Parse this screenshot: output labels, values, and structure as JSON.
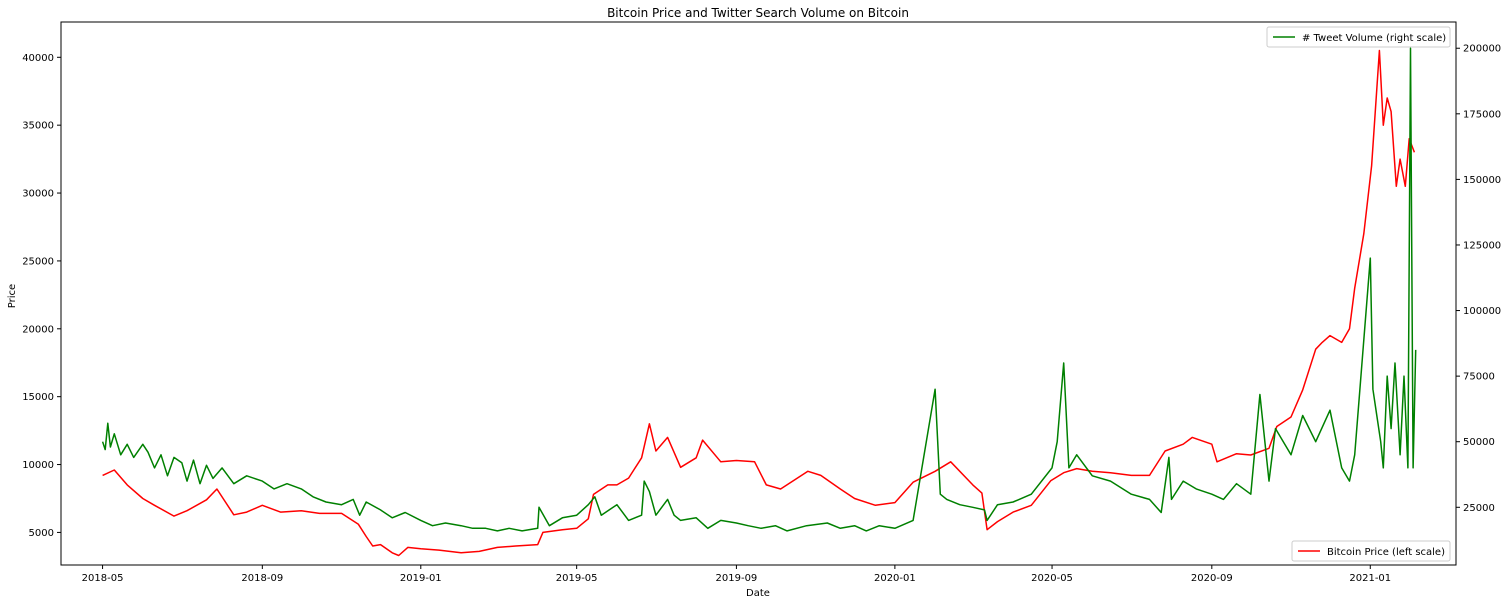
{
  "chart_data": {
    "type": "line",
    "title": "Bitcoin Price and Twitter Search Volume on Bitcoin",
    "xlabel": "Date",
    "ylabel": "Price",
    "y2label": "",
    "x_range": [
      "2018-03-30",
      "2021-03-08"
    ],
    "x_ticks": [
      "2018-05",
      "2018-09",
      "2019-01",
      "2019-05",
      "2019-09",
      "2020-01",
      "2020-05",
      "2020-09",
      "2021-01"
    ],
    "ylim": [
      2600,
      42600
    ],
    "y_ticks": [
      5000,
      10000,
      15000,
      20000,
      25000,
      30000,
      35000,
      40000
    ],
    "y2lim": [
      3000,
      210000
    ],
    "y2_ticks": [
      25000,
      50000,
      75000,
      100000,
      125000,
      150000,
      175000,
      200000
    ],
    "grid": false,
    "series": [
      {
        "name": "Bitcoin Price (left scale)",
        "axis": "left",
        "color": "#ff0000",
        "legend_position": "lower right",
        "x": [
          "2018-05-01",
          "2018-05-10",
          "2018-05-20",
          "2018-06-01",
          "2018-06-10",
          "2018-06-25",
          "2018-07-05",
          "2018-07-20",
          "2018-07-28",
          "2018-08-10",
          "2018-08-20",
          "2018-09-01",
          "2018-09-15",
          "2018-10-01",
          "2018-10-15",
          "2018-11-01",
          "2018-11-14",
          "2018-11-20",
          "2018-11-25",
          "2018-12-01",
          "2018-12-10",
          "2018-12-15",
          "2018-12-22",
          "2019-01-01",
          "2019-01-15",
          "2019-02-01",
          "2019-02-15",
          "2019-03-01",
          "2019-03-15",
          "2019-04-01",
          "2019-04-05",
          "2019-04-20",
          "2019-05-01",
          "2019-05-10",
          "2019-05-14",
          "2019-05-25",
          "2019-06-01",
          "2019-06-10",
          "2019-06-20",
          "2019-06-26",
          "2019-07-01",
          "2019-07-10",
          "2019-07-20",
          "2019-08-01",
          "2019-08-06",
          "2019-08-20",
          "2019-09-01",
          "2019-09-15",
          "2019-09-24",
          "2019-10-05",
          "2019-10-26",
          "2019-11-05",
          "2019-11-20",
          "2019-12-01",
          "2019-12-17",
          "2020-01-01",
          "2020-01-15",
          "2020-02-01",
          "2020-02-13",
          "2020-03-01",
          "2020-03-08",
          "2020-03-12",
          "2020-03-20",
          "2020-04-01",
          "2020-04-15",
          "2020-04-30",
          "2020-05-10",
          "2020-05-20",
          "2020-06-01",
          "2020-06-15",
          "2020-07-01",
          "2020-07-15",
          "2020-07-27",
          "2020-08-10",
          "2020-08-17",
          "2020-09-01",
          "2020-09-05",
          "2020-09-20",
          "2020-10-01",
          "2020-10-15",
          "2020-10-21",
          "2020-11-01",
          "2020-11-10",
          "2020-11-20",
          "2020-11-25",
          "2020-12-01",
          "2020-12-10",
          "2020-12-16",
          "2020-12-20",
          "2020-12-27",
          "2021-01-02",
          "2021-01-08",
          "2021-01-11",
          "2021-01-14",
          "2021-01-17",
          "2021-01-21",
          "2021-01-24",
          "2021-01-28",
          "2021-01-31",
          "2021-02-02",
          "2021-02-04"
        ],
        "values": [
          9200,
          9600,
          8500,
          7500,
          7000,
          6200,
          6600,
          7400,
          8200,
          6300,
          6500,
          7000,
          6500,
          6600,
          6400,
          6400,
          5600,
          4700,
          4000,
          4100,
          3500,
          3300,
          3900,
          3800,
          3700,
          3500,
          3600,
          3900,
          4000,
          4100,
          5000,
          5200,
          5300,
          6000,
          7800,
          8500,
          8500,
          9000,
          10500,
          13000,
          11000,
          12000,
          9800,
          10500,
          11800,
          10200,
          10300,
          10200,
          8500,
          8200,
          9500,
          9200,
          8200,
          7500,
          7000,
          7200,
          8700,
          9500,
          10200,
          8500,
          7900,
          5200,
          5800,
          6500,
          7000,
          8800,
          9400,
          9700,
          9500,
          9400,
          9200,
          9200,
          11000,
          11500,
          12000,
          11500,
          10200,
          10800,
          10700,
          11200,
          12800,
          13500,
          15500,
          18500,
          19000,
          19500,
          19000,
          20000,
          23000,
          27000,
          32000,
          40500,
          35000,
          37000,
          36000,
          30500,
          32500,
          30500,
          34000,
          33500,
          33000
        ]
      },
      {
        "name": "# Tweet Volume (right scale)",
        "axis": "right",
        "color": "#008000",
        "legend_position": "upper right",
        "x": [
          "2018-05-01",
          "2018-05-03",
          "2018-05-05",
          "2018-05-07",
          "2018-05-10",
          "2018-05-15",
          "2018-05-20",
          "2018-05-25",
          "2018-06-01",
          "2018-06-05",
          "2018-06-10",
          "2018-06-15",
          "2018-06-20",
          "2018-06-25",
          "2018-07-01",
          "2018-07-05",
          "2018-07-10",
          "2018-07-15",
          "2018-07-20",
          "2018-07-25",
          "2018-08-01",
          "2018-08-10",
          "2018-08-20",
          "2018-09-01",
          "2018-09-10",
          "2018-09-20",
          "2018-10-01",
          "2018-10-10",
          "2018-10-20",
          "2018-11-01",
          "2018-11-10",
          "2018-11-15",
          "2018-11-20",
          "2018-12-01",
          "2018-12-10",
          "2018-12-20",
          "2019-01-01",
          "2019-01-10",
          "2019-01-20",
          "2019-02-01",
          "2019-02-10",
          "2019-02-20",
          "2019-03-01",
          "2019-03-10",
          "2019-03-20",
          "2019-04-01",
          "2019-04-02",
          "2019-04-10",
          "2019-04-20",
          "2019-05-01",
          "2019-05-10",
          "2019-05-15",
          "2019-05-20",
          "2019-06-01",
          "2019-06-10",
          "2019-06-20",
          "2019-06-22",
          "2019-06-26",
          "2019-07-01",
          "2019-07-10",
          "2019-07-15",
          "2019-07-20",
          "2019-08-01",
          "2019-08-10",
          "2019-08-20",
          "2019-09-01",
          "2019-09-10",
          "2019-09-20",
          "2019-10-01",
          "2019-10-10",
          "2019-10-25",
          "2019-11-10",
          "2019-11-20",
          "2019-12-01",
          "2019-12-10",
          "2019-12-20",
          "2020-01-01",
          "2020-01-15",
          "2020-02-01",
          "2020-02-05",
          "2020-02-10",
          "2020-02-20",
          "2020-03-01",
          "2020-03-10",
          "2020-03-12",
          "2020-03-20",
          "2020-04-01",
          "2020-04-15",
          "2020-05-01",
          "2020-05-05",
          "2020-05-10",
          "2020-05-14",
          "2020-05-20",
          "2020-06-01",
          "2020-06-15",
          "2020-07-01",
          "2020-07-15",
          "2020-07-24",
          "2020-07-30",
          "2020-08-01",
          "2020-08-10",
          "2020-08-20",
          "2020-09-01",
          "2020-09-10",
          "2020-09-20",
          "2020-10-01",
          "2020-10-08",
          "2020-10-15",
          "2020-10-20",
          "2020-11-01",
          "2020-11-10",
          "2020-11-20",
          "2020-12-01",
          "2020-12-10",
          "2020-12-16",
          "2020-12-20",
          "2021-01-01",
          "2021-01-03",
          "2021-01-06",
          "2021-01-09",
          "2021-01-11",
          "2021-01-14",
          "2021-01-17",
          "2021-01-20",
          "2021-01-24",
          "2021-01-27",
          "2021-01-30",
          "2021-02-01",
          "2021-02-03",
          "2021-02-05"
        ],
        "values": [
          50000,
          47000,
          57000,
          48000,
          53000,
          45000,
          49000,
          44000,
          49000,
          46000,
          40000,
          45000,
          37000,
          44000,
          42000,
          35000,
          43000,
          34000,
          41000,
          36000,
          40000,
          34000,
          37000,
          35000,
          32000,
          34000,
          32000,
          29000,
          27000,
          26000,
          28000,
          22000,
          27000,
          24000,
          21000,
          23000,
          20000,
          18000,
          19000,
          18000,
          17000,
          17000,
          16000,
          17000,
          16000,
          17000,
          25000,
          18000,
          21000,
          22000,
          26000,
          29000,
          22000,
          26000,
          20000,
          22000,
          35000,
          31000,
          22000,
          28000,
          22000,
          20000,
          21000,
          17000,
          20000,
          19000,
          18000,
          17000,
          18000,
          16000,
          18000,
          19000,
          17000,
          18000,
          16000,
          18000,
          17000,
          20000,
          70000,
          30000,
          28000,
          26000,
          25000,
          24000,
          20000,
          26000,
          27000,
          30000,
          40000,
          50000,
          80000,
          40000,
          45000,
          37000,
          35000,
          30000,
          28000,
          23000,
          44000,
          28000,
          35000,
          32000,
          30000,
          28000,
          34000,
          30000,
          68000,
          35000,
          55000,
          45000,
          60000,
          50000,
          62000,
          40000,
          35000,
          45000,
          120000,
          70000,
          60000,
          50000,
          40000,
          75000,
          55000,
          80000,
          45000,
          75000,
          40000,
          200000,
          40000,
          85000
        ]
      }
    ]
  }
}
